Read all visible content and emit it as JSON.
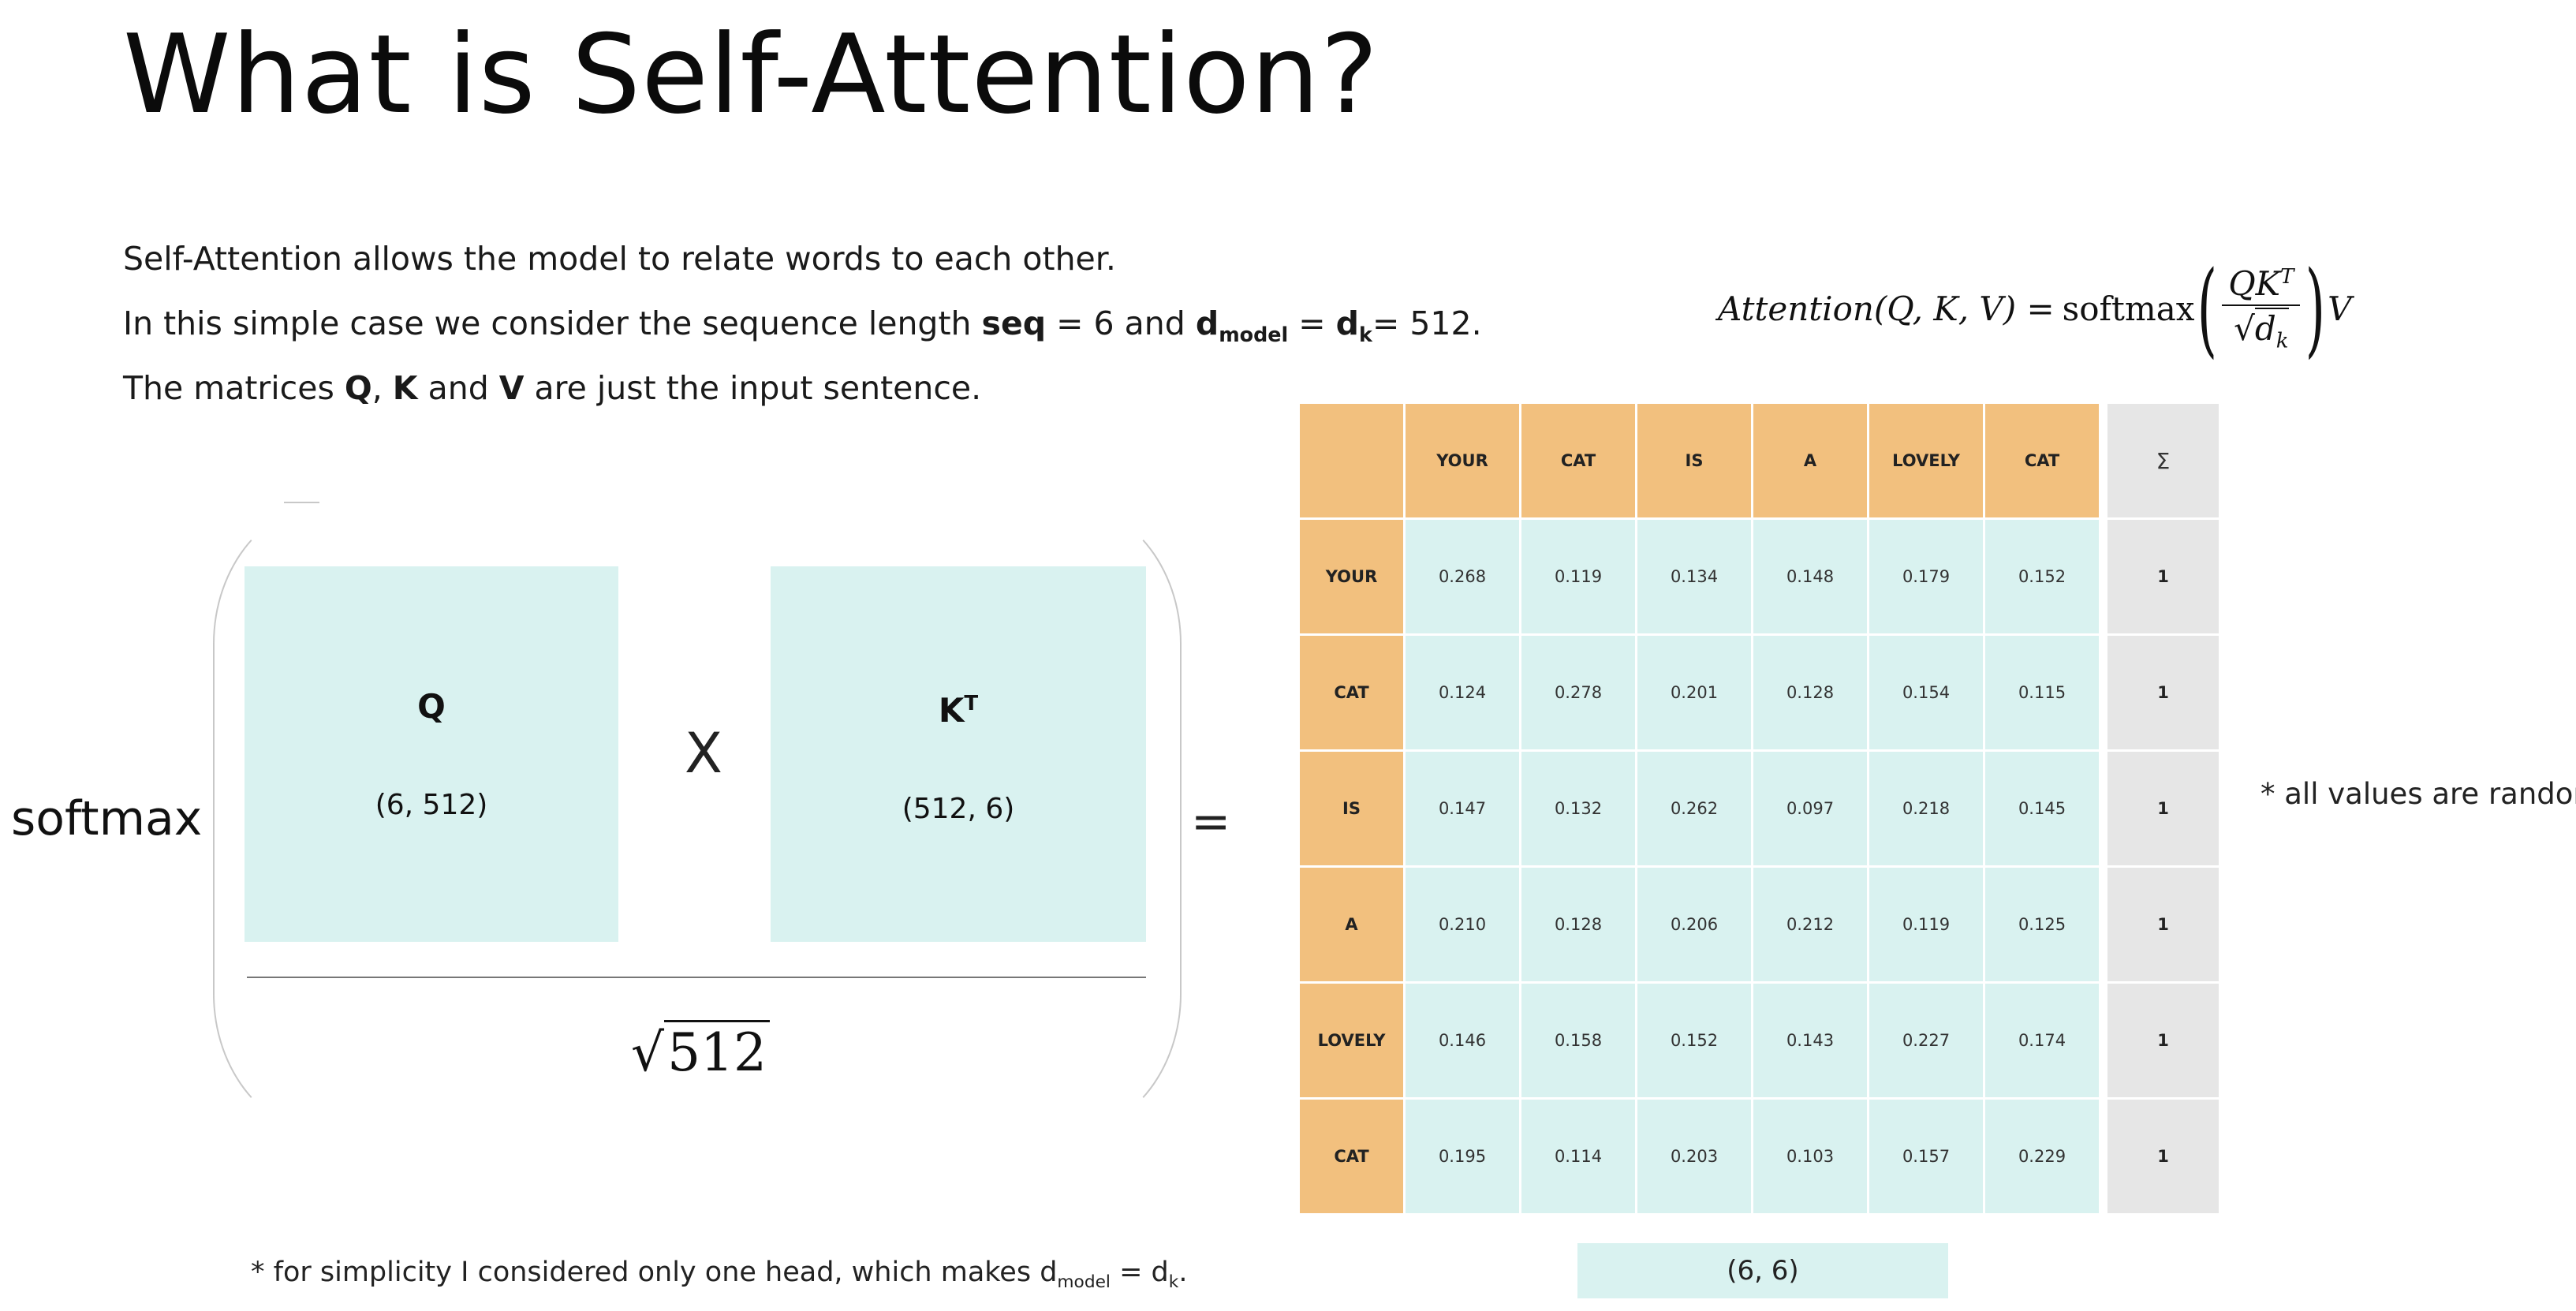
{
  "title": "What is Self-Attention?",
  "intro": {
    "line1": "Self-Attention allows the model to relate words to each other.",
    "line2_pre": "In this simple case we consider the sequence length ",
    "line2_seq": "seq",
    "line2_mid": " = 6 and ",
    "line2_d": "d",
    "line2_model": "model",
    "line2_eq": " = ",
    "line2_dk": "d",
    "line2_k": "k",
    "line2_post": "= 512.",
    "line3_pre": "The matrices ",
    "line3_q": "Q",
    "line3_comma": ", ",
    "line3_k": "K",
    "line3_and": " and ",
    "line3_v": "V",
    "line3_post": " are just the input sentence."
  },
  "formula": {
    "lhs": "Attention(Q, K, V) = ",
    "softmax": "softmax",
    "num": "QK",
    "num_sup": "T",
    "den_sqrt": "√",
    "den_d": "d",
    "den_k": "k",
    "rhs": "V"
  },
  "diagram": {
    "softmax_label": "softmax",
    "q_name": "Q",
    "q_dim": "(6, 512)",
    "times": "X",
    "k_name": "K",
    "k_sup": "T",
    "k_dim": "(512, 6)",
    "sqrt_symbol": "√",
    "sqrt_value": "512",
    "equals": "="
  },
  "attention_table": {
    "columns": [
      "YOUR",
      "CAT",
      "IS",
      "A",
      "LOVELY",
      "CAT"
    ],
    "sum_header": "Σ",
    "rows": [
      {
        "label": "YOUR",
        "values": [
          "0.268",
          "0.119",
          "0.134",
          "0.148",
          "0.179",
          "0.152"
        ],
        "sum": "1"
      },
      {
        "label": "CAT",
        "values": [
          "0.124",
          "0.278",
          "0.201",
          "0.128",
          "0.154",
          "0.115"
        ],
        "sum": "1"
      },
      {
        "label": "IS",
        "values": [
          "0.147",
          "0.132",
          "0.262",
          "0.097",
          "0.218",
          "0.145"
        ],
        "sum": "1"
      },
      {
        "label": "A",
        "values": [
          "0.210",
          "0.128",
          "0.206",
          "0.212",
          "0.119",
          "0.125"
        ],
        "sum": "1"
      },
      {
        "label": "LOVELY",
        "values": [
          "0.146",
          "0.158",
          "0.152",
          "0.143",
          "0.227",
          "0.174"
        ],
        "sum": "1"
      },
      {
        "label": "CAT",
        "values": [
          "0.195",
          "0.114",
          "0.203",
          "0.103",
          "0.157",
          "0.229"
        ],
        "sum": "1"
      }
    ],
    "shape": "(6, 6)"
  },
  "notes": {
    "random": "* all values are random.",
    "head_pre": "* for simplicity I considered only one head, which makes d",
    "head_model": "model",
    "head_eq": " = d",
    "head_k": "k",
    "head_end": "."
  },
  "colors": {
    "header": "#f2c07e",
    "cell": "#d9f2f0",
    "sum": "#e6e6e6"
  }
}
